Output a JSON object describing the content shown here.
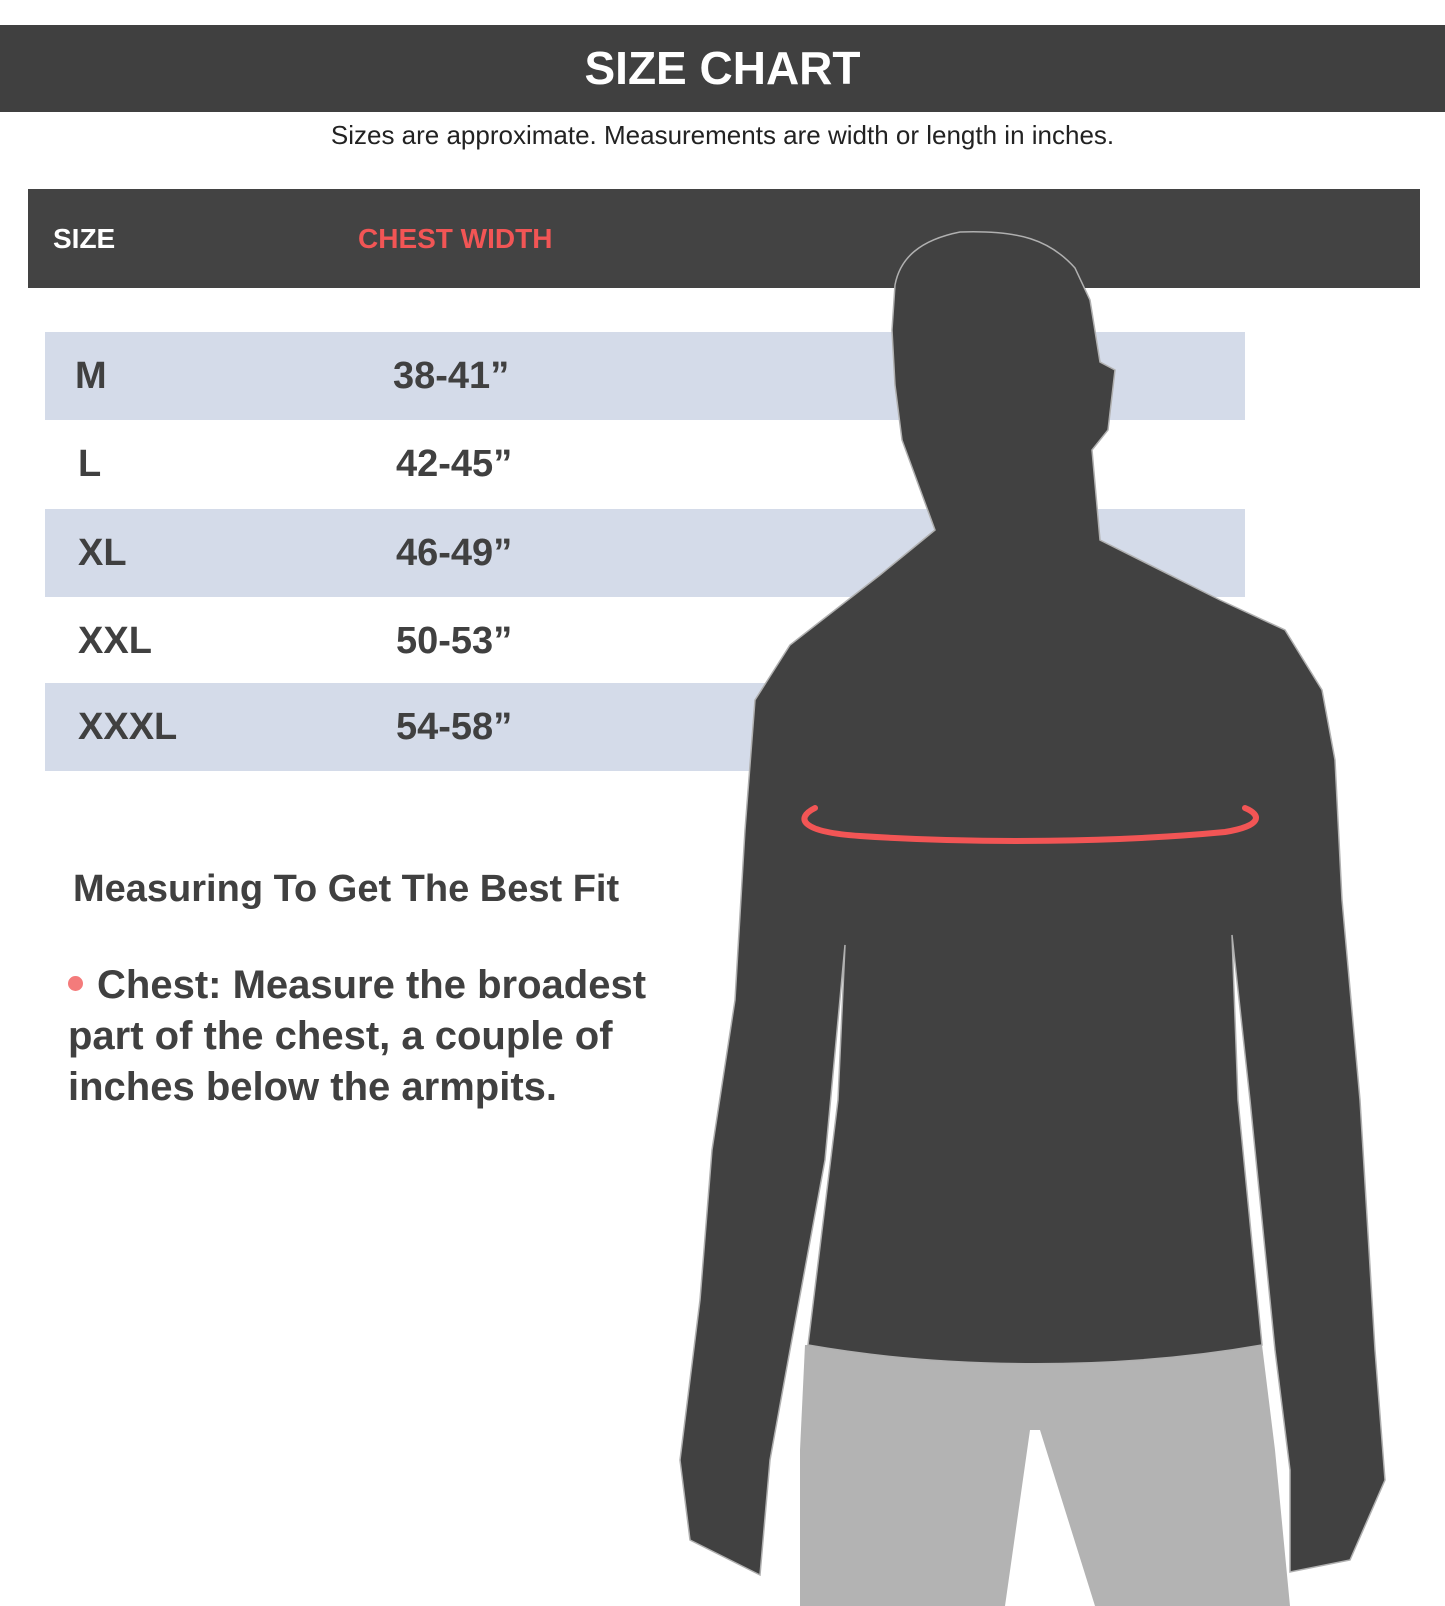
{
  "title": "SIZE CHART",
  "subtitle": "Sizes are approximate. Measurements are width or length in inches.",
  "table": {
    "headers": [
      "SIZE",
      "CHEST WIDTH"
    ],
    "rows": [
      {
        "size": "M",
        "chest": "38-41”"
      },
      {
        "size": "L",
        "chest": "42-45”"
      },
      {
        "size": "XL",
        "chest": "46-49”"
      },
      {
        "size": "XXL",
        "chest": "50-53”"
      },
      {
        "size": "XXXL",
        "chest": "54-58”"
      }
    ]
  },
  "guide": {
    "heading": "Measuring To Get The Best Fit",
    "bullet": "Chest: Measure the broadest part of the chest, a couple of inches below the armpits."
  },
  "colors": {
    "dark": "#404040",
    "accent": "#f25555",
    "row_shade": "#d4dbe9",
    "pants": "#b3b3b3"
  },
  "icons": {
    "figure": "male-silhouette-with-chest-measure-line"
  }
}
